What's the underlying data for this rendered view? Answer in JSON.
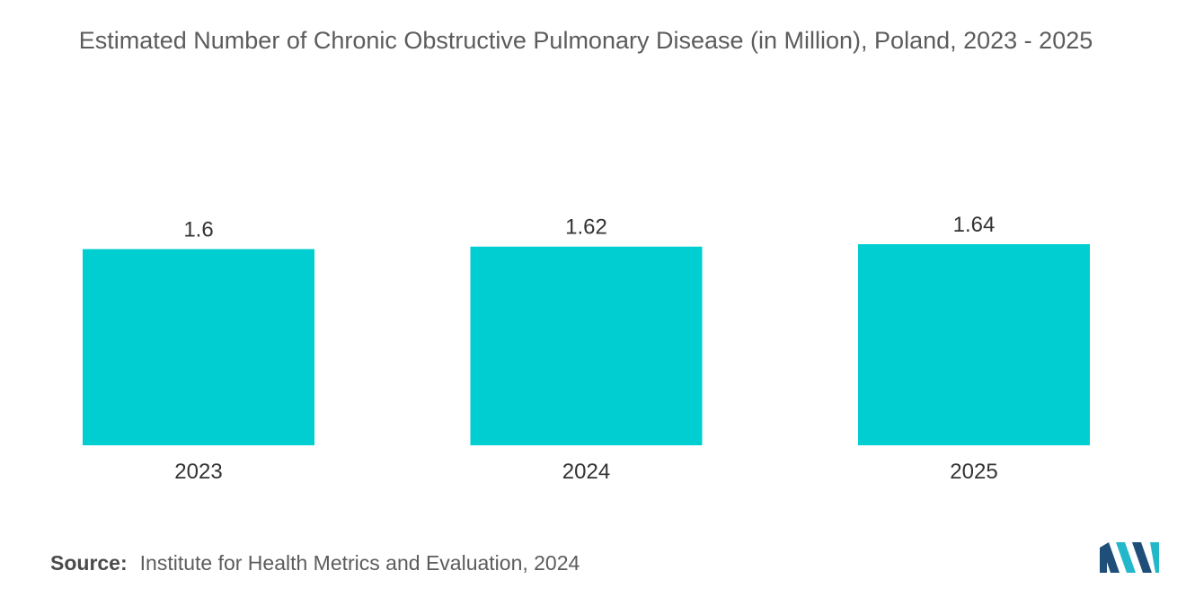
{
  "title": "Estimated Number of Chronic Obstructive Pulmonary Disease (in Million), Poland, 2023 - 2025",
  "source": {
    "label": "Source:",
    "text": "Institute for Health Metrics and Evaluation, 2024"
  },
  "colors": {
    "bar": "#00ced1",
    "logo_dark": "#1f4e79",
    "logo_light": "#22b8c9"
  },
  "logo_icon": "mordor-intelligence-logo-icon",
  "chart_data": {
    "type": "bar",
    "categories": [
      "2023",
      "2024",
      "2025"
    ],
    "values": [
      1.6,
      1.62,
      1.64
    ],
    "value_labels": [
      "1.6",
      "1.62",
      "1.64"
    ],
    "title": "Estimated Number of Chronic Obstructive Pulmonary Disease (in Million), Poland, 2023 - 2025",
    "xlabel": "",
    "ylabel": "",
    "ylim": [
      0,
      1.64
    ],
    "grid": false,
    "legend": "none"
  }
}
